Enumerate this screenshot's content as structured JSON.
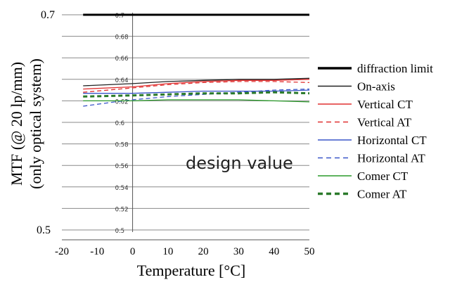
{
  "chart_data": {
    "type": "line",
    "xlabel": "Temperature [°C]",
    "ylabel_line1": "MTF (@ 20 lp/mm)",
    "ylabel_line2": "(only optical system)",
    "annotation": "design value",
    "xlim": [
      -20,
      50
    ],
    "ylim": [
      0.5,
      0.7
    ],
    "x_ticks": [
      "-20",
      "-10",
      "0",
      "10",
      "20",
      "30",
      "40",
      "50"
    ],
    "y_tick_edge_labels": [
      "0.7",
      "0.5"
    ],
    "y_tick_inner_labels": [
      "0.7",
      "0.68",
      "0.66",
      "0.64",
      "0.62",
      "0.6",
      "0.58",
      "0.56",
      "0.54",
      "0.52",
      "0.5"
    ],
    "grid": true,
    "legend_position": "right",
    "series": [
      {
        "name": "diffraction limit",
        "color": "#000000",
        "dash": false,
        "bold": true,
        "x": [
          -14,
          50
        ],
        "y": [
          0.7,
          0.7
        ]
      },
      {
        "name": "On-axis",
        "color": "#222222",
        "dash": false,
        "bold": false,
        "x": [
          -14,
          0,
          10,
          20,
          30,
          40,
          50
        ],
        "y": [
          0.634,
          0.636,
          0.638,
          0.639,
          0.64,
          0.64,
          0.641
        ]
      },
      {
        "name": "Vertical CT",
        "color": "#e03030",
        "dash": false,
        "bold": false,
        "x": [
          -14,
          0,
          10,
          20,
          30,
          40,
          50
        ],
        "y": [
          0.631,
          0.633,
          0.636,
          0.638,
          0.639,
          0.639,
          0.64
        ]
      },
      {
        "name": "Vertical AT",
        "color": "#e03030",
        "dash": true,
        "bold": false,
        "x": [
          -14,
          0,
          10,
          20,
          30,
          40,
          50
        ],
        "y": [
          0.628,
          0.632,
          0.635,
          0.637,
          0.638,
          0.638,
          0.637
        ]
      },
      {
        "name": "Horizontal CT",
        "color": "#3a56c8",
        "dash": false,
        "bold": false,
        "x": [
          -14,
          0,
          10,
          20,
          30,
          40,
          50
        ],
        "y": [
          0.627,
          0.627,
          0.628,
          0.629,
          0.629,
          0.629,
          0.63
        ]
      },
      {
        "name": "Horizontal AT",
        "color": "#3a56c8",
        "dash": true,
        "bold": false,
        "x": [
          -14,
          -5,
          0,
          10,
          20,
          30,
          40,
          50
        ],
        "y": [
          0.615,
          0.619,
          0.621,
          0.624,
          0.626,
          0.628,
          0.63,
          0.631
        ]
      },
      {
        "name": "Comer CT",
        "color": "#2a9a2a",
        "dash": false,
        "bold": false,
        "x": [
          -14,
          0,
          10,
          20,
          30,
          40,
          50
        ],
        "y": [
          0.62,
          0.62,
          0.621,
          0.621,
          0.621,
          0.62,
          0.619
        ]
      },
      {
        "name": "Comer AT",
        "color": "#2a7a2a",
        "dash": true,
        "bold": true,
        "x": [
          -14,
          0,
          10,
          20,
          30,
          40,
          50
        ],
        "y": [
          0.624,
          0.625,
          0.626,
          0.627,
          0.627,
          0.628,
          0.627
        ]
      }
    ]
  }
}
